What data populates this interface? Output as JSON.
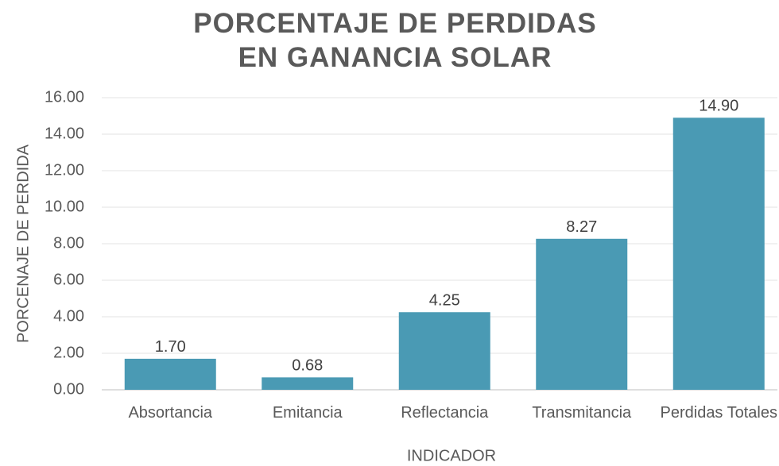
{
  "chart_data": {
    "type": "bar",
    "title": "PORCENTAJE DE PERDIDAS EN GANANCIA SOLAR",
    "x_label": "INDICADOR",
    "y_label": "PORCENAJE DE PERDIDA",
    "categories": [
      "Absortancia",
      "Emitancia",
      "Reflectancia",
      "Transmitancia",
      "Perdidas Totales"
    ],
    "values": [
      1.7,
      0.68,
      4.25,
      8.27,
      14.9
    ],
    "value_labels": [
      "1.70",
      "0.68",
      "4.25",
      "8.27",
      "14.90"
    ],
    "color": "#4a9ab4",
    "ylim": [
      0,
      16
    ],
    "yticks": [
      {
        "value": 0,
        "label": "0.00"
      },
      {
        "value": 2,
        "label": "2.00"
      },
      {
        "value": 4,
        "label": "4.00"
      },
      {
        "value": 6,
        "label": "6.00"
      },
      {
        "value": 8,
        "label": "8.00"
      },
      {
        "value": 10,
        "label": "10.00"
      },
      {
        "value": 12,
        "label": "12.00"
      },
      {
        "value": 14,
        "label": "14.00"
      },
      {
        "value": 16,
        "label": "16.00"
      }
    ],
    "grid": true
  }
}
